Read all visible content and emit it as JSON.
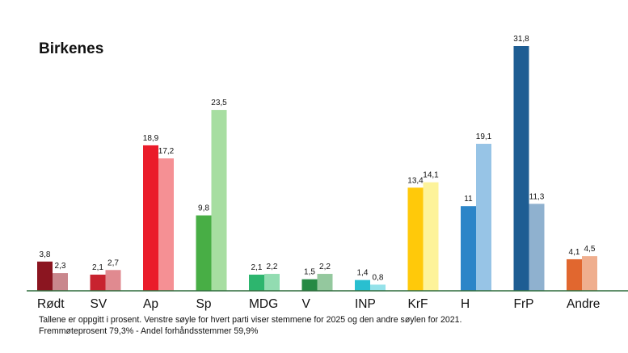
{
  "chart_data": {
    "type": "bar",
    "title": "Birkenes",
    "categories": [
      "Rødt",
      "SV",
      "Ap",
      "Sp",
      "MDG",
      "V",
      "INP",
      "KrF",
      "H",
      "FrP",
      "Andre"
    ],
    "series": [
      {
        "values": [
          3.8,
          2.1,
          18.9,
          9.8,
          2.1,
          1.5,
          1.4,
          13.4,
          11,
          31.8,
          4.1
        ]
      },
      {
        "values": [
          2.3,
          2.7,
          17.2,
          23.5,
          2.2,
          2.2,
          0.8,
          14.1,
          19.1,
          11.3,
          4.5
        ]
      }
    ],
    "value_labels": [
      [
        "3,8",
        "2,1",
        "18,9",
        "9,8",
        "2,1",
        "1,5",
        "1,4",
        "13,4",
        "11",
        "31,8",
        "4,1"
      ],
      [
        "2,3",
        "2,7",
        "17,2",
        "23,5",
        "2,2",
        "2,2",
        "0,8",
        "14,1",
        "19,1",
        "11,3",
        "4,5"
      ]
    ],
    "colors": [
      [
        "#8b1520",
        "#c9878d"
      ],
      [
        "#c8232f",
        "#e08a90"
      ],
      [
        "#ea1c2a",
        "#f59094"
      ],
      [
        "#48ae45",
        "#a7dea1"
      ],
      [
        "#2db56e",
        "#92dcb1"
      ],
      [
        "#258a44",
        "#94c89e"
      ],
      [
        "#29bfd0",
        "#95e2ea"
      ],
      [
        "#ffc90a",
        "#fdf39a"
      ],
      [
        "#2c85c8",
        "#97c4e6"
      ],
      [
        "#1e5d93",
        "#8fb1cf"
      ],
      [
        "#e1672f",
        "#efae8e"
      ]
    ],
    "ylim": [
      0,
      31.8
    ],
    "grid": false,
    "legend": "none",
    "footnote_lines": [
      "Tallene er oppgitt i prosent. Venstre søyle for hvert parti viser stemmene for 2025 og den andre søylen for 2021.",
      "Fremmøteprosent 79,3% - Andel forhåndsstemmer 59,9%"
    ]
  }
}
